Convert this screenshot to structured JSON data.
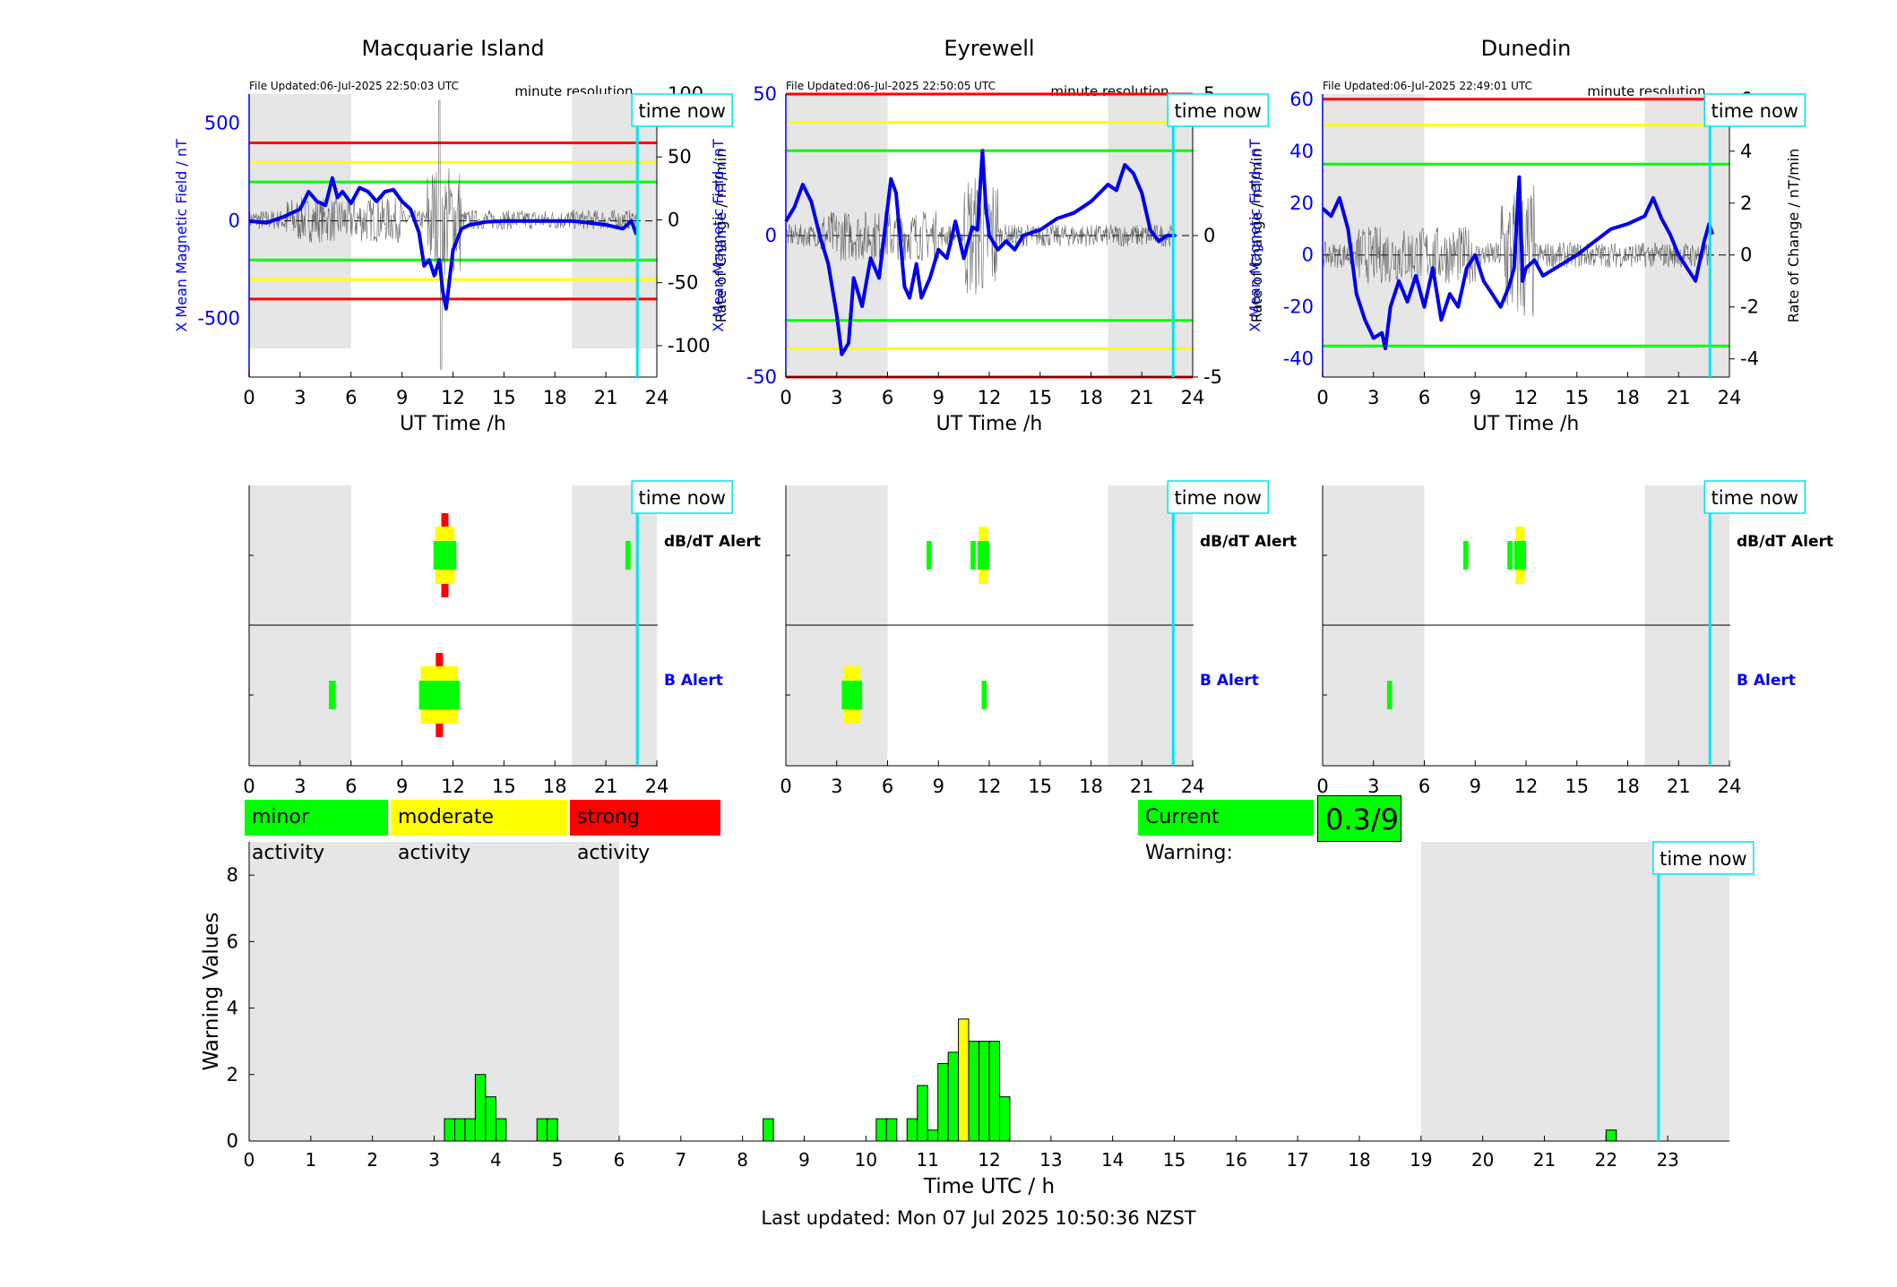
{
  "hours_ticks": [
    "0",
    "3",
    "6",
    "9",
    "12",
    "15",
    "18",
    "21",
    "24"
  ],
  "time_now_label": "time now",
  "minute_resolution_label": "minute resolution",
  "xlabel_top": "UT Time /h",
  "ylabel_left": "X Mean Magnetic Field / nT",
  "ylabel_right": "Rate of Change / nT/min",
  "alert_labels": {
    "dbdt": "dB/dT Alert",
    "b": "B Alert"
  },
  "stations": [
    {
      "name": "Macquarie Island",
      "updated": "File Updated:06-Jul-2025 22:50:03 UTC",
      "b_ticks": [
        "500",
        "0",
        "-500"
      ],
      "r_ticks": [
        "100",
        "50",
        "0",
        "-50",
        "-100"
      ]
    },
    {
      "name": "Eyrewell",
      "updated": "File Updated:06-Jul-2025 22:50:05 UTC",
      "b_ticks": [
        "50",
        "0",
        "-50"
      ],
      "r_ticks": [
        "5",
        "0",
        "-5"
      ]
    },
    {
      "name": "Dunedin",
      "updated": "File Updated:06-Jul-2025 22:49:01 UTC",
      "b_ticks": [
        "60",
        "40",
        "20",
        "0",
        "-20",
        "-40"
      ],
      "r_ticks": [
        "6",
        "4",
        "2",
        "0",
        "-2",
        "-4"
      ]
    }
  ],
  "legend": {
    "minor": "minor activity",
    "moderate": "moderate activity",
    "strong": "strong activity"
  },
  "current_warning": {
    "label": "Current Warning:",
    "value": "0.3/9"
  },
  "footer": "Last updated: Mon 07 Jul 2025 10:50:36 NZST",
  "colors": {
    "minor": "#00ff00",
    "moderate": "#ffff00",
    "strong": "#ff0000",
    "field": "#0000ee",
    "time_now": "#00e5ee",
    "night": "#e6e6e6"
  },
  "chart_data": [
    {
      "type": "line",
      "title": "Macquarie Island",
      "xlabel": "UT Time /h",
      "ylabel": "X Mean Magnetic Field / nT",
      "ylabel_right": "Rate of Change / nT/min",
      "xlim": [
        0,
        24
      ],
      "ylim": [
        -800,
        650
      ],
      "ylim_right": [
        -125,
        100
      ],
      "night_shading_hours": [
        [
          0,
          6
        ],
        [
          19,
          24
        ]
      ],
      "time_now_hour": 22.85,
      "threshold_lines_nT": {
        "red": [
          400,
          -400
        ],
        "yellow": [
          300,
          -300
        ],
        "green": [
          200,
          -200
        ]
      },
      "series": [
        {
          "x": [
            0,
            1,
            2,
            3,
            3.5,
            4,
            4.5,
            4.9,
            5.2,
            5.5,
            6,
            6.5,
            7,
            7.5,
            8,
            8.5,
            9,
            9.5,
            10,
            10.3,
            10.6,
            10.9,
            11.2,
            11.4,
            11.6,
            11.8,
            12,
            12.5,
            13,
            14,
            15,
            16,
            17,
            18,
            19,
            20,
            21,
            22,
            22.5,
            22.8
          ],
          "values": [
            0,
            -10,
            20,
            60,
            150,
            100,
            80,
            220,
            120,
            150,
            90,
            170,
            150,
            100,
            150,
            160,
            100,
            60,
            -60,
            -230,
            -200,
            -280,
            -200,
            -360,
            -450,
            -300,
            -150,
            -40,
            -20,
            -5,
            0,
            0,
            0,
            0,
            0,
            -10,
            -20,
            -40,
            0,
            -70
          ]
        }
      ]
    },
    {
      "type": "line",
      "title": "Eyrewell",
      "xlabel": "UT Time /h",
      "ylabel": "X Mean Magnetic Field / nT",
      "ylabel_right": "Rate of Change / nT/min",
      "xlim": [
        0,
        24
      ],
      "ylim": [
        -50,
        50
      ],
      "ylim_right": [
        -5,
        5
      ],
      "night_shading_hours": [
        [
          0,
          6
        ],
        [
          19,
          24
        ]
      ],
      "time_now_hour": 22.85,
      "threshold_lines_nT": {
        "red": [
          50,
          -50
        ],
        "yellow": [
          40,
          -40
        ],
        "green": [
          30,
          -30
        ]
      },
      "series": [
        {
          "x": [
            0,
            0.5,
            1,
            1.5,
            2,
            2.5,
            3,
            3.3,
            3.7,
            4,
            4.5,
            5,
            5.5,
            6,
            6.2,
            6.5,
            7,
            7.3,
            7.7,
            8,
            8.5,
            9,
            9.5,
            10,
            10.5,
            11,
            11.3,
            11.6,
            11.8,
            12,
            12.5,
            13,
            13.5,
            14,
            15,
            16,
            17,
            18,
            19,
            19.5,
            20,
            20.5,
            21,
            21.5,
            22,
            22.5,
            23
          ],
          "values": [
            5,
            10,
            18,
            12,
            0,
            -10,
            -28,
            -42,
            -38,
            -15,
            -25,
            -8,
            -15,
            10,
            20,
            15,
            -18,
            -22,
            -10,
            -22,
            -15,
            -5,
            -8,
            5,
            -8,
            3,
            2,
            30,
            10,
            0,
            -5,
            -2,
            -5,
            0,
            2,
            6,
            8,
            12,
            18,
            16,
            25,
            22,
            15,
            2,
            -2,
            0,
            0
          ]
        }
      ]
    },
    {
      "type": "line",
      "title": "Dunedin",
      "xlabel": "UT Time /h",
      "ylabel": "X Mean Magnetic Field / nT",
      "ylabel_right": "Rate of Change / nT/min",
      "xlim": [
        0,
        24
      ],
      "ylim": [
        -47,
        62
      ],
      "ylim_right": [
        -4.7,
        6.2
      ],
      "night_shading_hours": [
        [
          0,
          6
        ],
        [
          19,
          24
        ]
      ],
      "time_now_hour": 22.85,
      "threshold_lines_nT": {
        "red": [
          60
        ],
        "yellow": [
          50
        ],
        "green": [
          35,
          -35
        ]
      },
      "series": [
        {
          "x": [
            0,
            0.5,
            1,
            1.5,
            2,
            2.5,
            3,
            3.5,
            3.7,
            4,
            4.5,
            5,
            5.5,
            6,
            6.5,
            7,
            7.5,
            8,
            8.5,
            9,
            9.5,
            10,
            10.5,
            11,
            11.3,
            11.6,
            11.8,
            12,
            12.5,
            13,
            14,
            15,
            16,
            17,
            18,
            19,
            19.5,
            20,
            20.5,
            21,
            21.5,
            22,
            22.5,
            22.8,
            23
          ],
          "values": [
            18,
            15,
            22,
            10,
            -15,
            -25,
            -32,
            -30,
            -36,
            -20,
            -10,
            -18,
            -8,
            -20,
            -5,
            -25,
            -15,
            -20,
            -5,
            0,
            -10,
            -15,
            -20,
            -12,
            -5,
            30,
            -10,
            -5,
            -2,
            -8,
            -4,
            0,
            5,
            10,
            12,
            15,
            22,
            14,
            8,
            0,
            -5,
            -10,
            5,
            12,
            8
          ]
        }
      ]
    },
    {
      "type": "bar",
      "title": "",
      "xlabel": "Time UTC / h",
      "ylabel": "Warning Values",
      "xlim": [
        0,
        24
      ],
      "ylim": [
        0,
        9
      ],
      "night_shading_hours": [
        [
          0,
          6
        ],
        [
          19,
          24
        ]
      ],
      "time_now_hour": 22.85,
      "bar_width_hours": 0.1667,
      "x": [
        3.25,
        3.417,
        3.583,
        3.75,
        3.917,
        4.083,
        4.75,
        4.917,
        8.417,
        10.25,
        10.417,
        10.75,
        10.917,
        11.083,
        11.25,
        11.417,
        11.583,
        11.75,
        11.917,
        12.083,
        12.25,
        22.083
      ],
      "values": [
        0.67,
        0.67,
        0.67,
        2,
        1.33,
        0.67,
        0.67,
        0.67,
        0.67,
        0.67,
        0.67,
        0.67,
        1.67,
        0.33,
        2.33,
        2.67,
        3.67,
        3,
        3,
        3,
        1.33,
        0.33
      ],
      "levels": [
        "minor",
        "minor",
        "minor",
        "minor",
        "minor",
        "minor",
        "minor",
        "minor",
        "minor",
        "minor",
        "minor",
        "minor",
        "minor",
        "minor",
        "minor",
        "minor",
        "moderate",
        "minor",
        "minor",
        "minor",
        "minor",
        "minor"
      ],
      "xticks": [
        "0",
        "1",
        "2",
        "3",
        "4",
        "5",
        "6",
        "7",
        "8",
        "9",
        "10",
        "11",
        "12",
        "13",
        "14",
        "15",
        "16",
        "17",
        "18",
        "19",
        "20",
        "21",
        "22",
        "23"
      ],
      "yticks": [
        "0",
        "2",
        "4",
        "6",
        "8"
      ]
    }
  ]
}
